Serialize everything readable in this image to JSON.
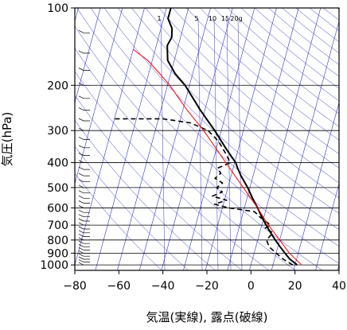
{
  "chart_data": {
    "type": "line",
    "title": "",
    "xlabel": "気温(実線), 露点(破線)",
    "ylabel": "気圧(hPa)",
    "xlim": [
      -80,
      40
    ],
    "ylim_hpa": [
      1050,
      100
    ],
    "y_scale": "log",
    "grid": true,
    "x_ticks": [
      {
        "value": -80,
        "label": "−80"
      },
      {
        "value": -60,
        "label": "−60"
      },
      {
        "value": -40,
        "label": "−40"
      },
      {
        "value": -20,
        "label": "−20"
      },
      {
        "value": 0,
        "label": "0"
      },
      {
        "value": 20,
        "label": "20"
      },
      {
        "value": 40,
        "label": "40"
      }
    ],
    "y_ticks": [
      {
        "value": 1000,
        "label": "1000"
      },
      {
        "value": 900,
        "label": "900"
      },
      {
        "value": 800,
        "label": "800"
      },
      {
        "value": 700,
        "label": "700"
      },
      {
        "value": 600,
        "label": "600"
      },
      {
        "value": 500,
        "label": "500"
      },
      {
        "value": 400,
        "label": "400"
      },
      {
        "value": 300,
        "label": "300"
      },
      {
        "value": 200,
        "label": "200"
      },
      {
        "value": 100,
        "label": "100"
      }
    ],
    "mixing_ratio_labels": [
      "1",
      "5",
      "10",
      "15",
      "20g"
    ],
    "colors": {
      "isotherm": "#3333cc",
      "temperature": "#000000",
      "dewpoint": "#000000",
      "parcel": "#ff0000",
      "grid": "#000000"
    },
    "series": [
      {
        "style": "solid",
        "points": [
          {
            "p": 1000,
            "t": 21
          },
          {
            "p": 975,
            "t": 19
          },
          {
            "p": 950,
            "t": 17
          },
          {
            "p": 925,
            "t": 15.5
          },
          {
            "p": 900,
            "t": 14
          },
          {
            "p": 850,
            "t": 11
          },
          {
            "p": 800,
            "t": 8
          },
          {
            "p": 750,
            "t": 5
          },
          {
            "p": 700,
            "t": 2
          },
          {
            "p": 650,
            "t": -1
          },
          {
            "p": 600,
            "t": -4
          },
          {
            "p": 550,
            "t": -7.5
          },
          {
            "p": 500,
            "t": -11
          },
          {
            "p": 450,
            "t": -15.5
          },
          {
            "p": 420,
            "t": -18
          },
          {
            "p": 400,
            "t": -19.5
          },
          {
            "p": 380,
            "t": -22
          },
          {
            "p": 350,
            "t": -26
          },
          {
            "p": 300,
            "t": -33
          },
          {
            "p": 250,
            "t": -42
          },
          {
            "p": 200,
            "t": -52
          },
          {
            "p": 180,
            "t": -58
          },
          {
            "p": 160,
            "t": -63
          },
          {
            "p": 150,
            "t": -64
          },
          {
            "p": 140,
            "t": -65
          },
          {
            "p": 130,
            "t": -64
          },
          {
            "p": 120,
            "t": -65
          },
          {
            "p": 110,
            "t": -68
          },
          {
            "p": 100,
            "t": -68
          }
        ]
      },
      {
        "style": "dashed",
        "points": [
          {
            "p": 1000,
            "t": 19
          },
          {
            "p": 950,
            "t": 14
          },
          {
            "p": 900,
            "t": 10
          },
          {
            "p": 850,
            "t": 6
          },
          {
            "p": 800,
            "t": 4
          },
          {
            "p": 750,
            "t": 6
          },
          {
            "p": 720,
            "t": 2
          },
          {
            "p": 700,
            "t": 4
          },
          {
            "p": 650,
            "t": -2
          },
          {
            "p": 620,
            "t": -5
          },
          {
            "p": 600,
            "t": -17
          },
          {
            "p": 580,
            "t": -24
          },
          {
            "p": 560,
            "t": -19
          },
          {
            "p": 540,
            "t": -26
          },
          {
            "p": 520,
            "t": -22
          },
          {
            "p": 500,
            "t": -25
          },
          {
            "p": 480,
            "t": -23
          },
          {
            "p": 460,
            "t": -27
          },
          {
            "p": 440,
            "t": -25
          },
          {
            "p": 420,
            "t": -27
          },
          {
            "p": 400,
            "t": -22
          },
          {
            "p": 370,
            "t": -25
          },
          {
            "p": 330,
            "t": -30
          },
          {
            "p": 300,
            "t": -36
          },
          {
            "p": 280,
            "t": -45
          },
          {
            "p": 270,
            "t": -58
          },
          {
            "p": 270,
            "t": -80
          }
        ]
      },
      {
        "style": "solid",
        "points": [
          {
            "p": 1000,
            "t": 23
          },
          {
            "p": 900,
            "t": 16
          },
          {
            "p": 800,
            "t": 10
          },
          {
            "p": 700,
            "t": 3
          },
          {
            "p": 600,
            "t": -4
          },
          {
            "p": 500,
            "t": -13
          },
          {
            "p": 400,
            "t": -24
          },
          {
            "p": 300,
            "t": -38
          },
          {
            "p": 250,
            "t": -48
          },
          {
            "p": 200,
            "t": -59
          },
          {
            "p": 180,
            "t": -65
          },
          {
            "p": 160,
            "t": -72
          },
          {
            "p": 145,
            "t": -80
          }
        ]
      }
    ]
  }
}
